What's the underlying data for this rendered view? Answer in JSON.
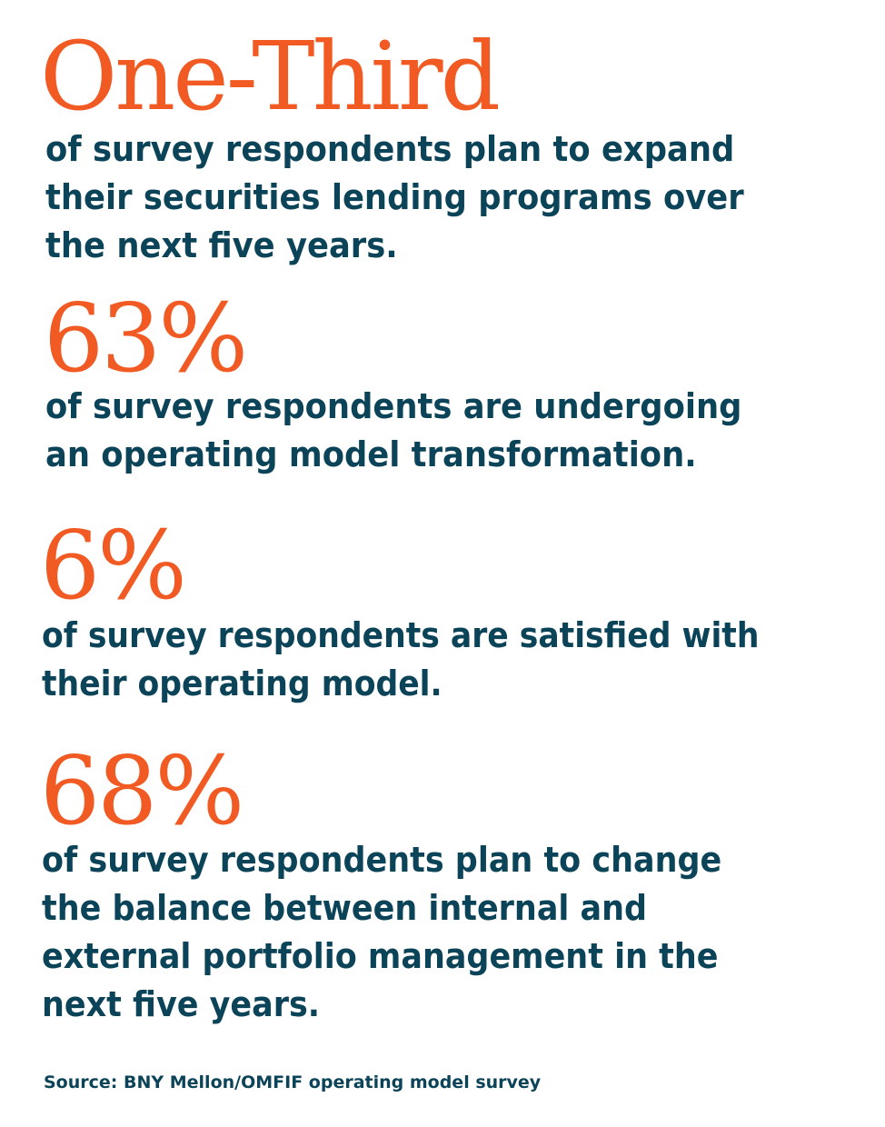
{
  "colors": {
    "accent": "#f15a22",
    "text": "#0b4358",
    "background": "#ffffff"
  },
  "stats": [
    {
      "value": "One-Third",
      "lines": [
        "of survey respondents plan to expand",
        "their securities lending programs over",
        "the next five years."
      ]
    },
    {
      "value": "63%",
      "lines": [
        "of survey respondents are undergoing",
        "an operating model transformation."
      ]
    },
    {
      "value": "6%",
      "lines": [
        "of survey respondents are satisfied with",
        "their operating model."
      ]
    },
    {
      "value": "68%",
      "lines": [
        "of survey respondents plan to change",
        "the balance between internal and",
        "external portfolio management in the",
        "next five years."
      ]
    }
  ],
  "source": "Source: BNY Mellon/OMFIF operating model survey"
}
